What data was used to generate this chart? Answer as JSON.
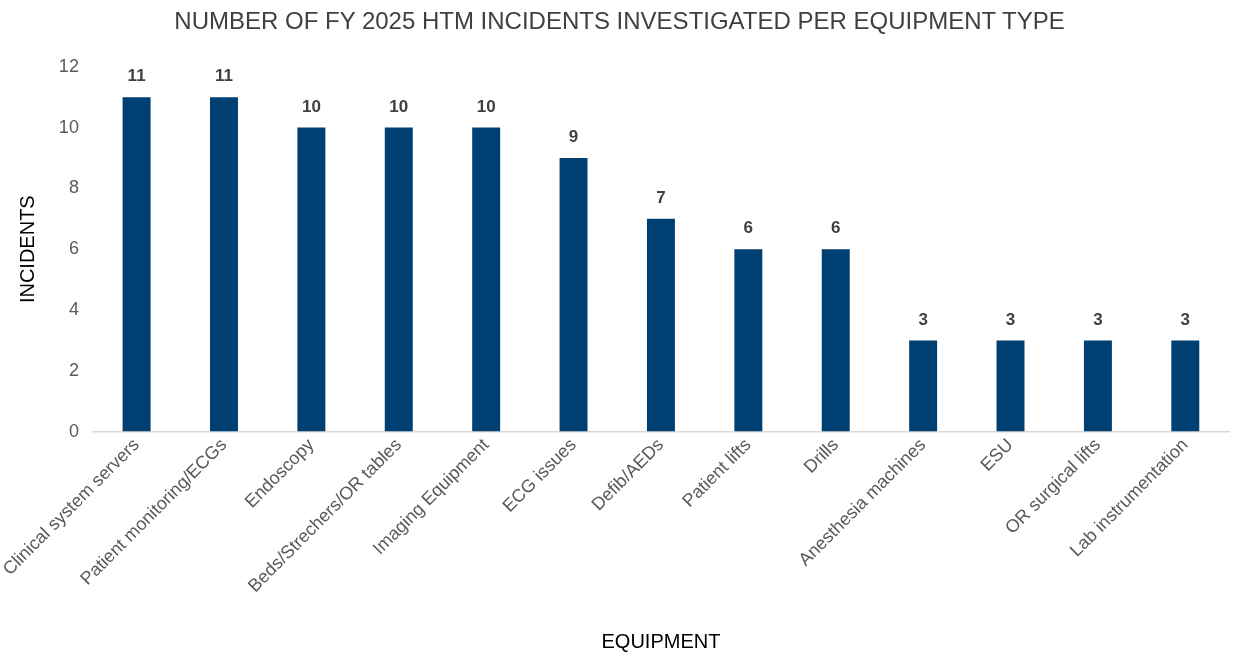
{
  "chart_data": {
    "type": "bar",
    "title": "NUMBER OF FY 2025 HTM INCIDENTS INVESTIGATED PER EQUIPMENT TYPE",
    "xlabel": "EQUIPMENT",
    "ylabel": "INCIDENTS",
    "categories": [
      "Clinical system servers",
      "Patient monitoring/ECGs",
      "Endoscopy",
      "Beds/Strechers/OR tables",
      "Imaging Equipment",
      "ECG issues",
      "Defib/AEDs",
      "Patient lifts",
      "Drills",
      "Anesthesia machines",
      "ESU",
      "OR surgical lifts",
      "Lab instrumentation"
    ],
    "values": [
      11,
      11,
      10,
      10,
      10,
      9,
      7,
      6,
      6,
      3,
      3,
      3,
      3
    ],
    "color": "#003f72",
    "ylim": [
      0,
      12
    ],
    "yticks": [
      0,
      2,
      4,
      6,
      8,
      10,
      12
    ],
    "grid": false,
    "legend": false,
    "data_labels": true
  }
}
